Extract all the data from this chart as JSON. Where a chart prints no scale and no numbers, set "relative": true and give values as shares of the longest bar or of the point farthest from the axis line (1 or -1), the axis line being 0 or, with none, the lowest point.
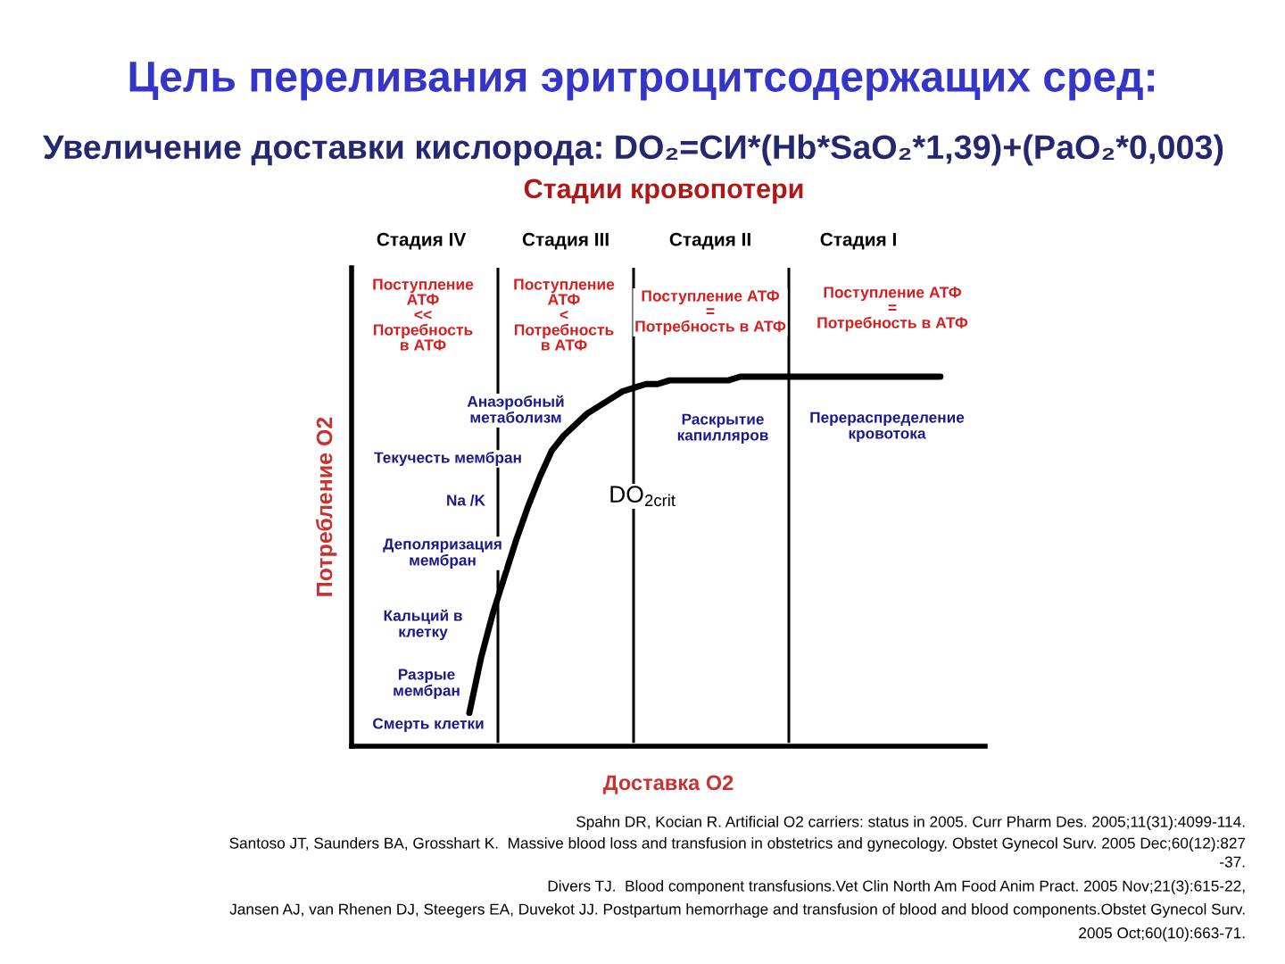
{
  "chart_data": {
    "type": "line",
    "title": "Цель переливания эритроцитсодержащих сред:",
    "subtitle": "Увеличение доставки кислорода: DO₂=СИ*(Hb*SaO₂*1,39)+(PaO₂*0,003)",
    "xlabel": "Доставка O2",
    "ylabel": "Потребление O2",
    "relative": true,
    "line_style": "solid",
    "categories": [
      null,
      null,
      null,
      null,
      null,
      null,
      null,
      null,
      null,
      null,
      null,
      null,
      null,
      null,
      null,
      null,
      null,
      null,
      null,
      null,
      null,
      null,
      null,
      null,
      null,
      null,
      null,
      null,
      null,
      null,
      null,
      null,
      null,
      null,
      null,
      null,
      null,
      null,
      null,
      null,
      null,
      null,
      null,
      null,
      null,
      null,
      null,
      null,
      null,
      null,
      null,
      null,
      null,
      null
    ],
    "series": [
      {
        "color": "#000000",
        "values": [
          null,
          null,
          null,
          null,
          null,
          null,
          null,
          null,
          null,
          null,
          0.09,
          0.24,
          0.36,
          0.46,
          0.56,
          0.65,
          0.73,
          0.8,
          0.84,
          0.87,
          0.9,
          0.92,
          0.94,
          0.96,
          0.97,
          0.98,
          0.98,
          0.99,
          0.99,
          0.99,
          0.99,
          0.99,
          0.99,
          1,
          1,
          1,
          1,
          1,
          1,
          1,
          1,
          1,
          1,
          1,
          1,
          1,
          1,
          1,
          1,
          1,
          1,
          null,
          null,
          null
        ]
      }
    ],
    "annotations": [
      "Стадии кровопотери",
      "Стадия IV",
      "Стадия III",
      "Стадия II",
      "Стадия I",
      "Поступление\nАТФ\n<<\nПотребность\nв АТФ",
      "Поступление\nАТФ\n<\nПотребность\nв АТФ",
      "Поступление АТФ\n=\nПотребность в АТФ",
      "Поступление АТФ\n=\nПотребность в АТФ",
      "Анаэробный\nметаболизм",
      "Текучесть мембран",
      "Na /K",
      "Деполяризация\nмембран",
      "Кальций в\nклетку",
      "Разрые\nмембран",
      "Смерть клетки",
      "Раскрытие\nкапилляров",
      "Перераспределение\nкровотока",
      "DO$_{2crit}$",
      "Spahn DR, Kocian R. Artificial O2 carriers: status in 2005. Curr Pharm Des. 2005;11(31):4099-114.",
      "Santoso JT, Saunders BA, Grosshart K.  Massive blood loss and transfusion in obstetrics and gynecology. Obstet Gynecol Surv. 2005 Dec;60(12):827\n-37.",
      "Divers TJ.  Blood component transfusions.Vet Clin North Am Food Anim Pract. 2005 Nov;21(3):615-22,",
      "Jansen AJ, van Rhenen DJ, Steegers EA, Duvekot JJ. Postpartum hemorrhage and transfusion of blood and blood components.Obstet Gynecol Surv.\n2005 Oct;60(10):663-71."
    ]
  }
}
